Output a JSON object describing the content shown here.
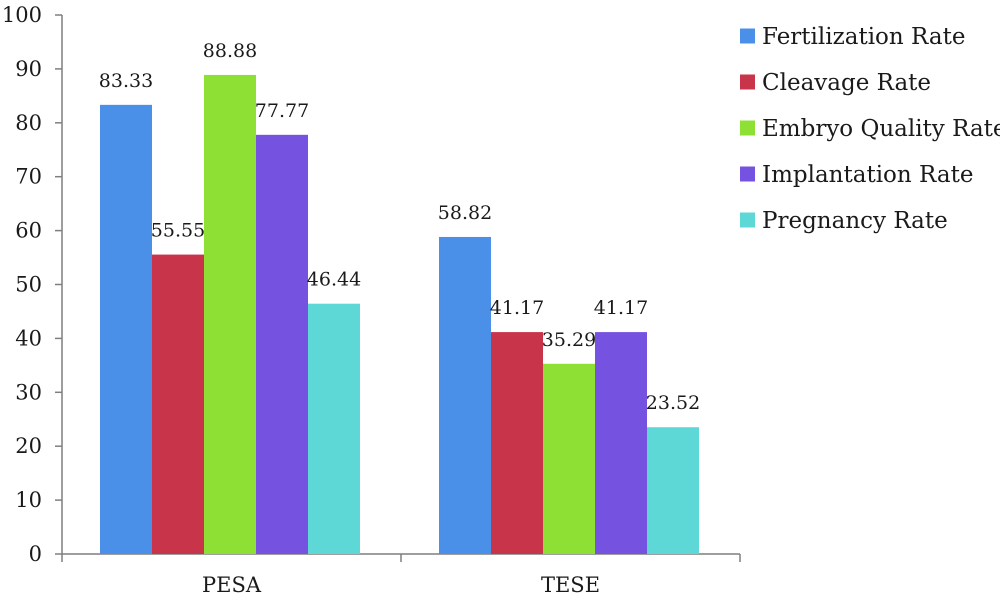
{
  "chart_data": {
    "type": "bar",
    "categories": [
      "PESA",
      "TESE"
    ],
    "series": [
      {
        "name": "Fertilization Rate",
        "values": [
          83.33,
          58.82
        ],
        "color": "#4a90e8"
      },
      {
        "name": "Cleavage Rate",
        "values": [
          55.55,
          41.17
        ],
        "color": "#c8344a"
      },
      {
        "name": "Embryo Quality Rate",
        "values": [
          88.88,
          35.29
        ],
        "color": "#8ee034"
      },
      {
        "name": "Implantation Rate",
        "values": [
          77.77,
          41.17
        ],
        "color": "#7552e0"
      },
      {
        "name": "Pregnancy Rate",
        "values": [
          46.44,
          23.52
        ],
        "color": "#5ed8d6"
      }
    ],
    "data_labels": [
      [
        "83.33",
        "58.82"
      ],
      [
        "55.55",
        "41.17"
      ],
      [
        "88.88",
        "35.29"
      ],
      [
        "77.77",
        "41.17"
      ],
      [
        "46.44",
        "23.52"
      ]
    ],
    "yticks": [
      "0",
      "10",
      "20",
      "30",
      "40",
      "50",
      "60",
      "70",
      "80",
      "90",
      "100"
    ],
    "ylim": [
      0,
      100
    ],
    "ystep": 10,
    "title": "",
    "xlabel": "",
    "ylabel": "",
    "grid": false,
    "legend_position": "right"
  }
}
